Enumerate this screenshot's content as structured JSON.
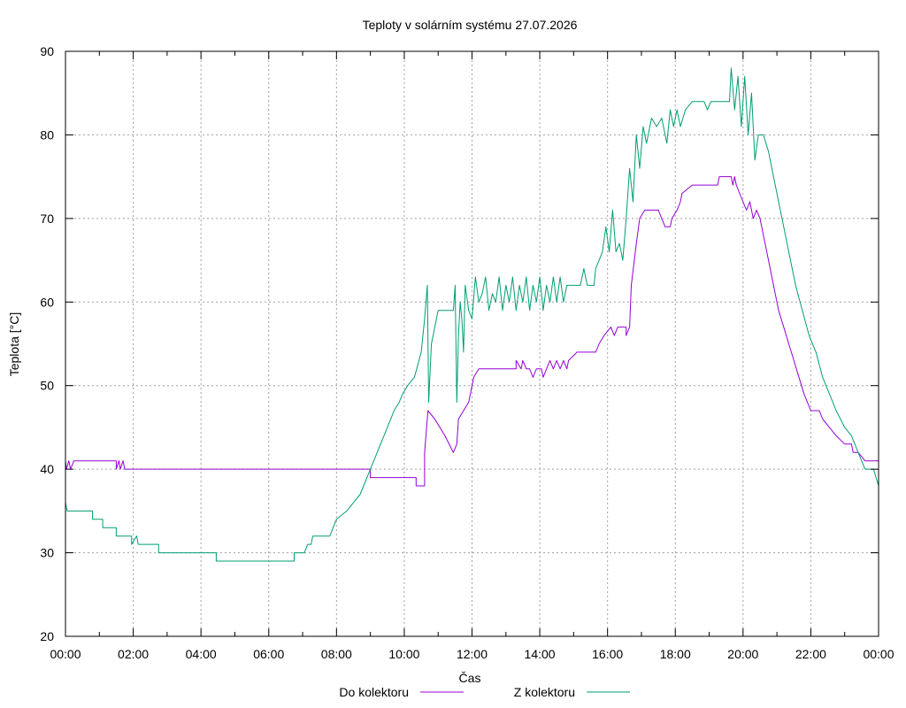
{
  "chart_data": {
    "type": "line",
    "title": "Teploty v solárním systému 27.07.2026",
    "xlabel": "Čas",
    "ylabel": "Teplota [°C]",
    "xlim": [
      0,
      24
    ],
    "ylim": [
      20,
      90
    ],
    "grid": true,
    "legend_position": "bottom-center",
    "x_ticks": [
      "00:00",
      "02:00",
      "04:00",
      "06:00",
      "08:00",
      "10:00",
      "12:00",
      "14:00",
      "16:00",
      "18:00",
      "20:00",
      "22:00",
      "00:00"
    ],
    "y_ticks": [
      "20",
      "30",
      "40",
      "50",
      "60",
      "70",
      "80",
      "90"
    ],
    "series": [
      {
        "name": "Do kolektoru",
        "color": "#9400d3",
        "points": [
          [
            0,
            41
          ],
          [
            0.03,
            40
          ],
          [
            0.1,
            41
          ],
          [
            0.15,
            40
          ],
          [
            0.25,
            41
          ],
          [
            1.5,
            41
          ],
          [
            1.5,
            40
          ],
          [
            1.58,
            41
          ],
          [
            1.62,
            40
          ],
          [
            1.7,
            41
          ],
          [
            1.75,
            40
          ],
          [
            9,
            40
          ],
          [
            9,
            39
          ],
          [
            10.35,
            39
          ],
          [
            10.35,
            38
          ],
          [
            10.6,
            38
          ],
          [
            10.6,
            42
          ],
          [
            10.7,
            47
          ],
          [
            10.9,
            46
          ],
          [
            11.2,
            44
          ],
          [
            11.45,
            42
          ],
          [
            11.55,
            43
          ],
          [
            11.6,
            46
          ],
          [
            11.75,
            47
          ],
          [
            11.9,
            48
          ],
          [
            12.05,
            51
          ],
          [
            12.2,
            52
          ],
          [
            13.3,
            52
          ],
          [
            13.3,
            53
          ],
          [
            13.45,
            52
          ],
          [
            13.5,
            53
          ],
          [
            13.6,
            52
          ],
          [
            13.7,
            52
          ],
          [
            13.8,
            51
          ],
          [
            13.9,
            52
          ],
          [
            14.05,
            52
          ],
          [
            14.1,
            51
          ],
          [
            14.2,
            52
          ],
          [
            14.3,
            53
          ],
          [
            14.4,
            52
          ],
          [
            14.5,
            53
          ],
          [
            14.6,
            52
          ],
          [
            14.7,
            53
          ],
          [
            14.8,
            52
          ],
          [
            14.85,
            53
          ],
          [
            15.1,
            54
          ],
          [
            15.65,
            54
          ],
          [
            15.75,
            55
          ],
          [
            15.9,
            56
          ],
          [
            16.1,
            57
          ],
          [
            16.2,
            56
          ],
          [
            16.3,
            57
          ],
          [
            16.55,
            57
          ],
          [
            16.55,
            56
          ],
          [
            16.65,
            57
          ],
          [
            16.7,
            62
          ],
          [
            16.85,
            67
          ],
          [
            16.95,
            70
          ],
          [
            17.1,
            71
          ],
          [
            17.5,
            71
          ],
          [
            17.6,
            70
          ],
          [
            17.7,
            69
          ],
          [
            17.85,
            69
          ],
          [
            17.9,
            70
          ],
          [
            18.05,
            71
          ],
          [
            18.15,
            72
          ],
          [
            18.2,
            73
          ],
          [
            18.5,
            74
          ],
          [
            19.25,
            74
          ],
          [
            19.3,
            75
          ],
          [
            19.65,
            75
          ],
          [
            19.7,
            74
          ],
          [
            19.75,
            75
          ],
          [
            19.8,
            74
          ],
          [
            19.9,
            73
          ],
          [
            20.0,
            72
          ],
          [
            20.1,
            71
          ],
          [
            20.2,
            72
          ],
          [
            20.3,
            70
          ],
          [
            20.4,
            71
          ],
          [
            20.5,
            70
          ],
          [
            20.6,
            68
          ],
          [
            20.75,
            65
          ],
          [
            20.9,
            62
          ],
          [
            21.05,
            59
          ],
          [
            21.2,
            57
          ],
          [
            21.35,
            55
          ],
          [
            21.5,
            53
          ],
          [
            21.65,
            51
          ],
          [
            21.8,
            49
          ],
          [
            22.0,
            47
          ],
          [
            22.25,
            47
          ],
          [
            22.35,
            46
          ],
          [
            22.55,
            45
          ],
          [
            22.75,
            44
          ],
          [
            23.0,
            43
          ],
          [
            23.2,
            43
          ],
          [
            23.25,
            42
          ],
          [
            23.4,
            42
          ],
          [
            23.6,
            41
          ],
          [
            24.0,
            41
          ]
        ]
      },
      {
        "name": "Z kolektoru",
        "color": "#009e73",
        "points": [
          [
            0,
            36
          ],
          [
            0.05,
            35
          ],
          [
            0.8,
            35
          ],
          [
            0.8,
            34
          ],
          [
            1.1,
            34
          ],
          [
            1.1,
            33
          ],
          [
            1.5,
            33
          ],
          [
            1.5,
            32
          ],
          [
            1.95,
            32
          ],
          [
            1.95,
            31
          ],
          [
            2.1,
            32
          ],
          [
            2.15,
            31
          ],
          [
            2.75,
            31
          ],
          [
            2.75,
            30
          ],
          [
            4.45,
            30
          ],
          [
            4.45,
            29
          ],
          [
            6.75,
            29
          ],
          [
            6.75,
            30
          ],
          [
            7.05,
            30
          ],
          [
            7.15,
            31
          ],
          [
            7.25,
            31
          ],
          [
            7.3,
            32
          ],
          [
            7.8,
            32
          ],
          [
            8.0,
            34
          ],
          [
            8.3,
            35
          ],
          [
            8.5,
            36
          ],
          [
            8.7,
            37
          ],
          [
            8.9,
            39
          ],
          [
            9.1,
            41
          ],
          [
            9.3,
            43
          ],
          [
            9.5,
            45
          ],
          [
            9.7,
            47
          ],
          [
            9.85,
            48
          ],
          [
            9.95,
            49
          ],
          [
            10.1,
            50
          ],
          [
            10.3,
            51
          ],
          [
            10.5,
            54
          ],
          [
            10.6,
            58
          ],
          [
            10.68,
            62
          ],
          [
            10.72,
            48
          ],
          [
            10.8,
            55
          ],
          [
            10.9,
            57
          ],
          [
            11.0,
            59
          ],
          [
            11.45,
            59
          ],
          [
            11.5,
            62
          ],
          [
            11.55,
            48
          ],
          [
            11.6,
            56
          ],
          [
            11.65,
            60
          ],
          [
            11.7,
            58
          ],
          [
            11.75,
            54
          ],
          [
            11.8,
            62
          ],
          [
            11.9,
            59
          ],
          [
            12.0,
            58
          ],
          [
            12.1,
            63
          ],
          [
            12.2,
            60
          ],
          [
            12.3,
            61
          ],
          [
            12.4,
            63
          ],
          [
            12.5,
            59
          ],
          [
            12.6,
            61
          ],
          [
            12.7,
            60
          ],
          [
            12.8,
            63
          ],
          [
            12.9,
            59
          ],
          [
            13.0,
            62
          ],
          [
            13.1,
            60
          ],
          [
            13.2,
            63
          ],
          [
            13.3,
            59
          ],
          [
            13.4,
            62
          ],
          [
            13.5,
            60
          ],
          [
            13.6,
            63
          ],
          [
            13.7,
            59
          ],
          [
            13.8,
            62
          ],
          [
            13.9,
            60
          ],
          [
            14.0,
            63
          ],
          [
            14.1,
            59
          ],
          [
            14.2,
            62
          ],
          [
            14.3,
            60
          ],
          [
            14.4,
            63
          ],
          [
            14.5,
            60
          ],
          [
            14.6,
            63
          ],
          [
            14.7,
            60
          ],
          [
            14.8,
            62
          ],
          [
            15.2,
            62
          ],
          [
            15.3,
            64
          ],
          [
            15.4,
            62
          ],
          [
            15.6,
            62
          ],
          [
            15.65,
            64
          ],
          [
            15.75,
            65
          ],
          [
            15.85,
            66
          ],
          [
            15.95,
            69
          ],
          [
            16.05,
            66
          ],
          [
            16.15,
            71
          ],
          [
            16.25,
            66
          ],
          [
            16.35,
            67
          ],
          [
            16.45,
            65
          ],
          [
            16.55,
            70
          ],
          [
            16.65,
            76
          ],
          [
            16.75,
            72
          ],
          [
            16.85,
            80
          ],
          [
            16.95,
            76
          ],
          [
            17.05,
            81
          ],
          [
            17.15,
            79
          ],
          [
            17.3,
            82
          ],
          [
            17.45,
            81
          ],
          [
            17.6,
            82
          ],
          [
            17.75,
            79
          ],
          [
            17.85,
            83
          ],
          [
            17.95,
            81
          ],
          [
            18.05,
            83
          ],
          [
            18.15,
            81
          ],
          [
            18.3,
            83
          ],
          [
            18.5,
            84
          ],
          [
            18.85,
            84
          ],
          [
            18.95,
            83
          ],
          [
            19.05,
            84
          ],
          [
            19.6,
            84
          ],
          [
            19.65,
            88
          ],
          [
            19.75,
            83
          ],
          [
            19.85,
            87
          ],
          [
            19.95,
            81
          ],
          [
            20.05,
            87
          ],
          [
            20.15,
            80
          ],
          [
            20.25,
            85
          ],
          [
            20.35,
            77
          ],
          [
            20.45,
            80
          ],
          [
            20.6,
            80
          ],
          [
            20.75,
            78
          ],
          [
            20.9,
            75
          ],
          [
            21.05,
            72
          ],
          [
            21.2,
            69
          ],
          [
            21.35,
            66
          ],
          [
            21.55,
            62
          ],
          [
            21.75,
            59
          ],
          [
            21.95,
            56
          ],
          [
            22.15,
            54
          ],
          [
            22.35,
            51
          ],
          [
            22.55,
            49
          ],
          [
            22.75,
            47
          ],
          [
            23.0,
            45
          ],
          [
            23.2,
            44
          ],
          [
            23.4,
            42
          ],
          [
            23.6,
            40
          ],
          [
            23.85,
            40
          ],
          [
            24.0,
            38
          ]
        ]
      }
    ]
  }
}
